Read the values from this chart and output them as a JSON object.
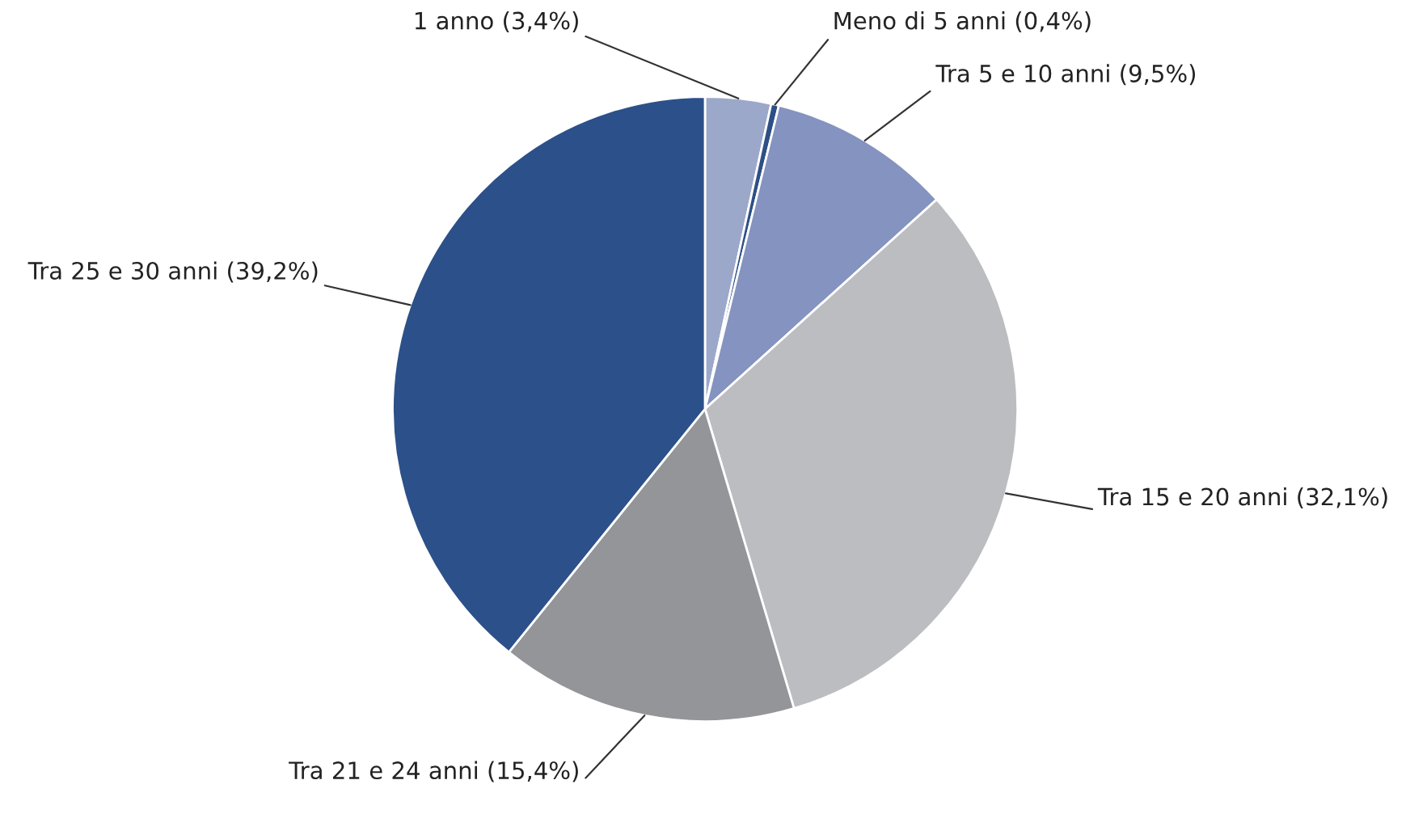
{
  "chart_data": {
    "type": "pie",
    "categories": [
      "1 anno (3,4%)",
      "Meno di 5 anni (0,4%)",
      "Tra 5 e 10 anni (9,5%)",
      "Tra 15 e 20 anni (32,1%)",
      "Tra 21 e 24 anni (15,4%)",
      "Tra 25 e 30 anni (39,2%)"
    ],
    "values": [
      3.4,
      0.4,
      9.5,
      32.1,
      15.4,
      39.2
    ],
    "colors": [
      "#9ca8ca",
      "#2e4f86",
      "#8493bf",
      "#bcbdc1",
      "#949599",
      "#2c5089"
    ]
  }
}
